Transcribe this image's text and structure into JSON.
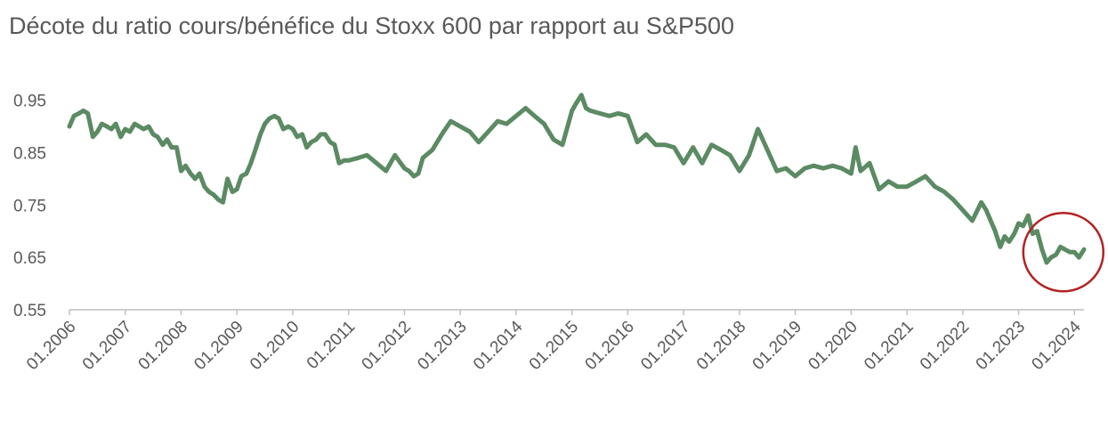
{
  "chart_data": {
    "type": "line",
    "title": "Décote du ratio cours/bénéfice du Stoxx 600 par rapport au S&P500",
    "xlabel": "",
    "ylabel": "",
    "ylim": [
      0.55,
      0.98
    ],
    "y_ticks": [
      "0.95",
      "0.85",
      "0.75",
      "0.65",
      "0.55"
    ],
    "x_ticks": [
      "01.2006",
      "01.2007",
      "01.2008",
      "01.2009",
      "01.2010",
      "01.2011",
      "01.2012",
      "01.2013",
      "01.2014",
      "01.2015",
      "01.2016",
      "01.2017",
      "01.2018",
      "01.2019",
      "01.2020",
      "01.2021",
      "01.2022",
      "01.2023",
      "01.2024"
    ],
    "x_start": "01.2006",
    "x_end": "03.2024",
    "grid": false,
    "legend": "none",
    "color": "#5b8a63",
    "annotation": {
      "type": "circle",
      "color": "#b22222",
      "x": 2023.8,
      "y": 0.66
    },
    "series": [
      {
        "x": [
          2006.0,
          2006.08,
          2006.17,
          2006.25,
          2006.33,
          2006.42,
          2006.5,
          2006.58,
          2006.67,
          2006.75,
          2006.83,
          2006.92,
          2007.0,
          2007.08,
          2007.17,
          2007.25,
          2007.33,
          2007.42,
          2007.5,
          2007.58,
          2007.67,
          2007.75,
          2007.83,
          2007.92,
          2008.0,
          2008.08,
          2008.17,
          2008.25,
          2008.33,
          2008.42,
          2008.5,
          2008.58,
          2008.67,
          2008.75,
          2008.83,
          2008.92,
          2009.0,
          2009.08,
          2009.17,
          2009.25,
          2009.33,
          2009.42,
          2009.5,
          2009.58,
          2009.67,
          2009.75,
          2009.83,
          2009.92,
          2010.0,
          2010.08,
          2010.17,
          2010.25,
          2010.33,
          2010.42,
          2010.5,
          2010.58,
          2010.67,
          2010.75,
          2010.83,
          2010.92,
          2011.0,
          2011.17,
          2011.33,
          2011.5,
          2011.67,
          2011.83,
          2012.0,
          2012.08,
          2012.17,
          2012.25,
          2012.33,
          2012.5,
          2012.67,
          2012.83,
          2013.0,
          2013.17,
          2013.33,
          2013.5,
          2013.67,
          2013.83,
          2014.0,
          2014.17,
          2014.33,
          2014.5,
          2014.67,
          2014.83,
          2015.0,
          2015.08,
          2015.17,
          2015.25,
          2015.33,
          2015.5,
          2015.67,
          2015.83,
          2016.0,
          2016.17,
          2016.33,
          2016.5,
          2016.67,
          2016.83,
          2017.0,
          2017.17,
          2017.33,
          2017.5,
          2017.67,
          2017.83,
          2018.0,
          2018.17,
          2018.33,
          2018.5,
          2018.67,
          2018.83,
          2019.0,
          2019.17,
          2019.33,
          2019.5,
          2019.67,
          2019.83,
          2020.0,
          2020.08,
          2020.17,
          2020.33,
          2020.5,
          2020.67,
          2020.83,
          2021.0,
          2021.17,
          2021.33,
          2021.5,
          2021.67,
          2021.83,
          2022.0,
          2022.17,
          2022.33,
          2022.42,
          2022.5,
          2022.58,
          2022.67,
          2022.75,
          2022.83,
          2022.92,
          2023.0,
          2023.08,
          2023.17,
          2023.25,
          2023.33,
          2023.42,
          2023.5,
          2023.58,
          2023.67,
          2023.75,
          2023.83,
          2023.92,
          2024.0,
          2024.08,
          2024.17
        ],
        "values": [
          0.9,
          0.92,
          0.925,
          0.93,
          0.925,
          0.88,
          0.89,
          0.905,
          0.9,
          0.895,
          0.905,
          0.88,
          0.895,
          0.89,
          0.905,
          0.9,
          0.895,
          0.9,
          0.885,
          0.88,
          0.865,
          0.875,
          0.86,
          0.86,
          0.815,
          0.825,
          0.81,
          0.8,
          0.81,
          0.785,
          0.775,
          0.77,
          0.76,
          0.755,
          0.8,
          0.775,
          0.78,
          0.805,
          0.81,
          0.83,
          0.855,
          0.885,
          0.905,
          0.915,
          0.92,
          0.915,
          0.895,
          0.9,
          0.895,
          0.88,
          0.885,
          0.86,
          0.87,
          0.875,
          0.885,
          0.885,
          0.87,
          0.865,
          0.83,
          0.835,
          0.835,
          0.84,
          0.845,
          0.83,
          0.815,
          0.845,
          0.82,
          0.815,
          0.805,
          0.81,
          0.84,
          0.855,
          0.885,
          0.91,
          0.9,
          0.89,
          0.87,
          0.89,
          0.91,
          0.905,
          0.92,
          0.935,
          0.92,
          0.905,
          0.875,
          0.865,
          0.93,
          0.945,
          0.96,
          0.935,
          0.93,
          0.925,
          0.92,
          0.925,
          0.92,
          0.87,
          0.885,
          0.865,
          0.865,
          0.86,
          0.83,
          0.86,
          0.83,
          0.865,
          0.855,
          0.845,
          0.815,
          0.845,
          0.895,
          0.855,
          0.815,
          0.82,
          0.805,
          0.82,
          0.825,
          0.82,
          0.825,
          0.82,
          0.81,
          0.86,
          0.815,
          0.83,
          0.78,
          0.795,
          0.785,
          0.785,
          0.795,
          0.805,
          0.785,
          0.775,
          0.76,
          0.74,
          0.72,
          0.755,
          0.74,
          0.72,
          0.7,
          0.67,
          0.69,
          0.68,
          0.695,
          0.715,
          0.71,
          0.73,
          0.695,
          0.7,
          0.665,
          0.64,
          0.65,
          0.655,
          0.67,
          0.665,
          0.66,
          0.66,
          0.65,
          0.665
        ]
      }
    ]
  }
}
